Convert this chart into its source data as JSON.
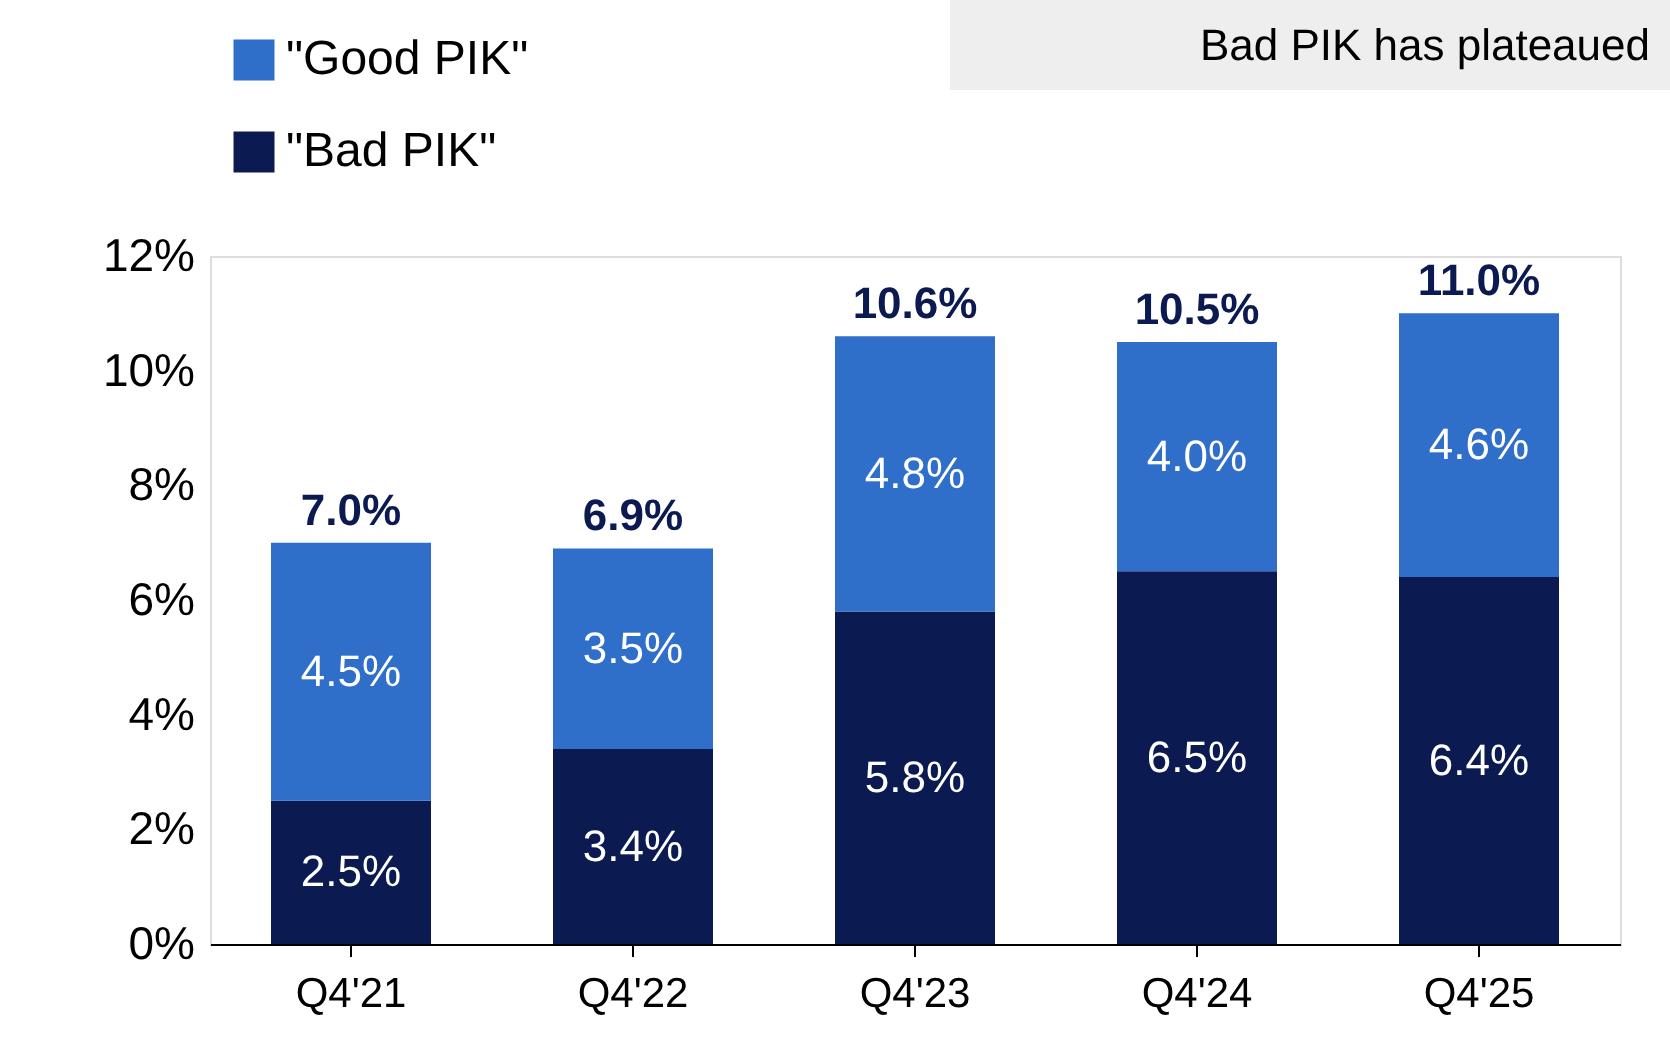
{
  "chart_data": {
    "type": "bar",
    "stacked": true,
    "categories": [
      "Q4'21",
      "Q4'22",
      "Q4'23",
      "Q4'24",
      "Q4'25"
    ],
    "series": [
      {
        "name": "\"Bad PIK\"",
        "color": "#0b1a50",
        "values": [
          2.5,
          3.4,
          5.8,
          6.5,
          6.4
        ],
        "value_labels": [
          "2.5%",
          "3.4%",
          "5.8%",
          "6.5%",
          "6.4%"
        ]
      },
      {
        "name": "\"Good PIK\"",
        "color": "#2f6fca",
        "values": [
          4.5,
          3.5,
          4.8,
          4.0,
          4.6
        ],
        "value_labels": [
          "4.5%",
          "3.5%",
          "4.8%",
          "4.0%",
          "4.6%"
        ]
      }
    ],
    "totals": [
      "7.0%",
      "6.9%",
      "10.6%",
      "10.5%",
      "11.0%"
    ],
    "ylim": [
      0,
      12
    ],
    "yticks": [
      {
        "value": 0,
        "label": "0%"
      },
      {
        "value": 2,
        "label": "2%"
      },
      {
        "value": 4,
        "label": "4%"
      },
      {
        "value": 6,
        "label": "6%"
      },
      {
        "value": 8,
        "label": "8%"
      },
      {
        "value": 10,
        "label": "10%"
      },
      {
        "value": 12,
        "label": "12%"
      }
    ],
    "annotations": [
      "Bad PIK has plateaued"
    ],
    "legend": "top left",
    "grid": false
  }
}
